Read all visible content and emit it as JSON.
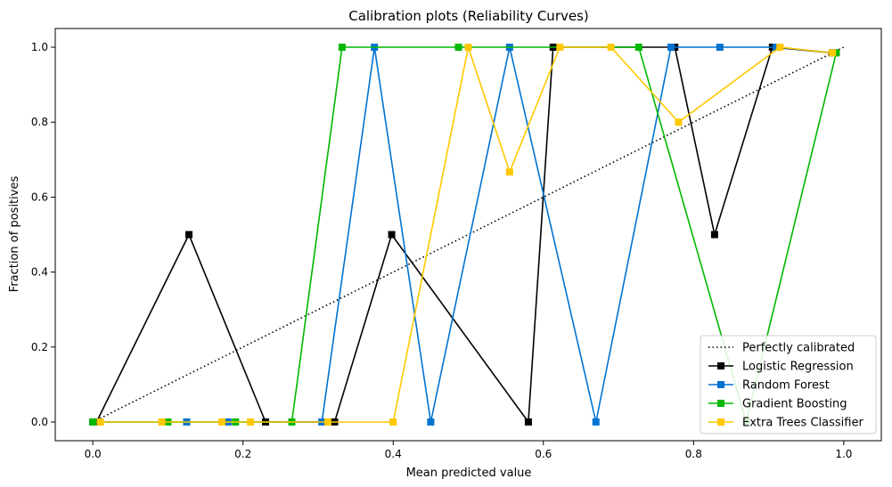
{
  "chart_data": {
    "type": "line",
    "title": "Calibration plots (Reliability Curves)",
    "xlabel": "Mean predicted value",
    "ylabel": "Fraction of positives",
    "xlim": [
      -0.05,
      1.05
    ],
    "ylim": [
      -0.05,
      1.05
    ],
    "xticks": [
      0.0,
      0.2,
      0.4,
      0.6,
      0.8,
      1.0
    ],
    "xtick_labels": [
      "0.0",
      "0.2",
      "0.4",
      "0.6",
      "0.8",
      "1.0"
    ],
    "yticks": [
      0.0,
      0.2,
      0.4,
      0.6,
      0.8,
      1.0
    ],
    "ytick_labels": [
      "0.0",
      "0.2",
      "0.4",
      "0.6",
      "0.8",
      "1.0"
    ],
    "grid": false,
    "legend_position": "lower-right",
    "series": [
      {
        "name": "Perfectly calibrated",
        "color": "#000000",
        "style": "dotted",
        "marker": "none",
        "x": [
          0,
          1
        ],
        "y": [
          0,
          1
        ]
      },
      {
        "name": "Logistic Regression",
        "color": "#000000",
        "style": "solid",
        "marker": "square",
        "x": [
          0.005,
          0.128,
          0.23,
          0.322,
          0.398,
          0.58,
          0.613,
          0.775,
          0.828,
          0.905,
          0.985
        ],
        "y": [
          0.0,
          0.5,
          0.0,
          0.0,
          0.5,
          0.0,
          1.0,
          1.0,
          0.5,
          1.0,
          0.985
        ]
      },
      {
        "name": "Random Forest",
        "color": "#0072d0",
        "style": "solid",
        "marker": "square",
        "x": [
          0.0,
          0.125,
          0.18,
          0.305,
          0.375,
          0.45,
          0.555,
          0.67,
          0.77,
          0.835,
          0.91,
          0.988
        ],
        "y": [
          0.0,
          0.0,
          0.0,
          0.0,
          1.0,
          0.0,
          1.0,
          0.0,
          1.0,
          1.0,
          1.0,
          0.985
        ]
      },
      {
        "name": "Gradient Boosting",
        "color": "#00b800",
        "style": "solid",
        "marker": "square",
        "x": [
          0.0,
          0.1,
          0.19,
          0.265,
          0.332,
          0.487,
          0.727,
          0.87,
          0.99
        ],
        "y": [
          0.0,
          0.0,
          0.0,
          0.0,
          1.0,
          1.0,
          1.0,
          0.0,
          0.985
        ]
      },
      {
        "name": "Extra Trees Classifier",
        "color": "#ffc800",
        "style": "solid",
        "marker": "square",
        "x": [
          0.01,
          0.092,
          0.172,
          0.21,
          0.313,
          0.4,
          0.5,
          0.555,
          0.622,
          0.69,
          0.78,
          0.915,
          0.985
        ],
        "y": [
          0.0,
          0.0,
          0.0,
          0.0,
          0.0,
          0.0,
          1.0,
          0.667,
          1.0,
          1.0,
          0.8,
          1.0,
          0.985
        ]
      }
    ]
  }
}
